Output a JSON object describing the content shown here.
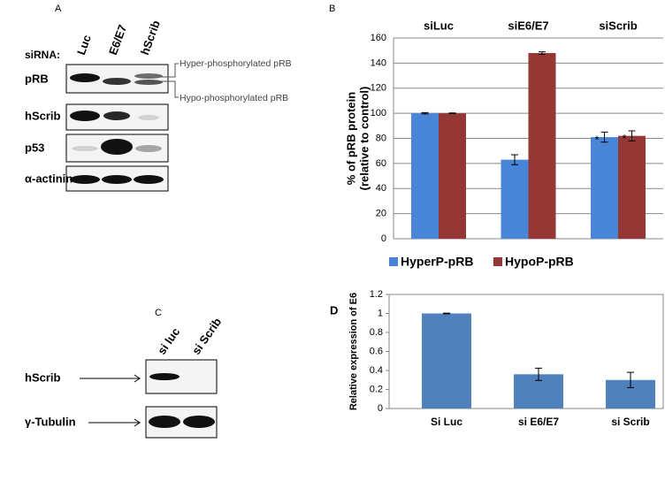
{
  "panels": {
    "a": "A",
    "b": "B",
    "c": "C",
    "d": "D"
  },
  "blot_a": {
    "sirna_label": "siRNA:",
    "lanes": [
      "Luc",
      "E6/E7",
      "hScrib"
    ],
    "rows": [
      "pRB",
      "hScrib",
      "p53",
      "α-actinin"
    ],
    "annotations": [
      "Hyper-phosphorylated pRB",
      "Hypo-phosphorylated pRB"
    ]
  },
  "blot_c": {
    "lanes": [
      "si luc",
      "si Scrib"
    ],
    "rows": [
      "hScrib",
      "γ-Tubulin"
    ]
  },
  "chart_data": [
    {
      "type": "bar",
      "categories": [
        "siLuc",
        "siE6/E7",
        "siScrib"
      ],
      "series": [
        {
          "name": "HyperP-pRB",
          "color": "#4a86d8",
          "values": [
            100,
            63,
            81
          ],
          "errors": [
            0.5,
            4,
            4
          ]
        },
        {
          "name": "HypoP-pRB",
          "color": "#953735",
          "values": [
            100,
            148,
            82
          ],
          "errors": [
            0.3,
            1,
            4
          ]
        }
      ],
      "ylabel": [
        "% of pRB protein",
        "(relative to control)"
      ],
      "ylim": [
        0,
        160
      ],
      "yticks": [
        0,
        20,
        40,
        60,
        80,
        100,
        120,
        140,
        160
      ],
      "grid": true,
      "legend": "bottom",
      "annotations": [
        "*",
        "*"
      ]
    },
    {
      "type": "bar",
      "categories": [
        "Si Luc",
        "si E6/E7",
        "si Scrib"
      ],
      "series": [
        {
          "color": "#4f81bd",
          "values": [
            1,
            0.36,
            0.3
          ],
          "errors": [
            0.003,
            0.065,
            0.08
          ]
        }
      ],
      "ylabel": "Relative expression of E6",
      "ylim": [
        0,
        1.2
      ],
      "yticks": [
        0,
        0.2,
        0.4,
        0.6,
        0.8,
        1,
        1.2
      ],
      "grid": false
    }
  ]
}
